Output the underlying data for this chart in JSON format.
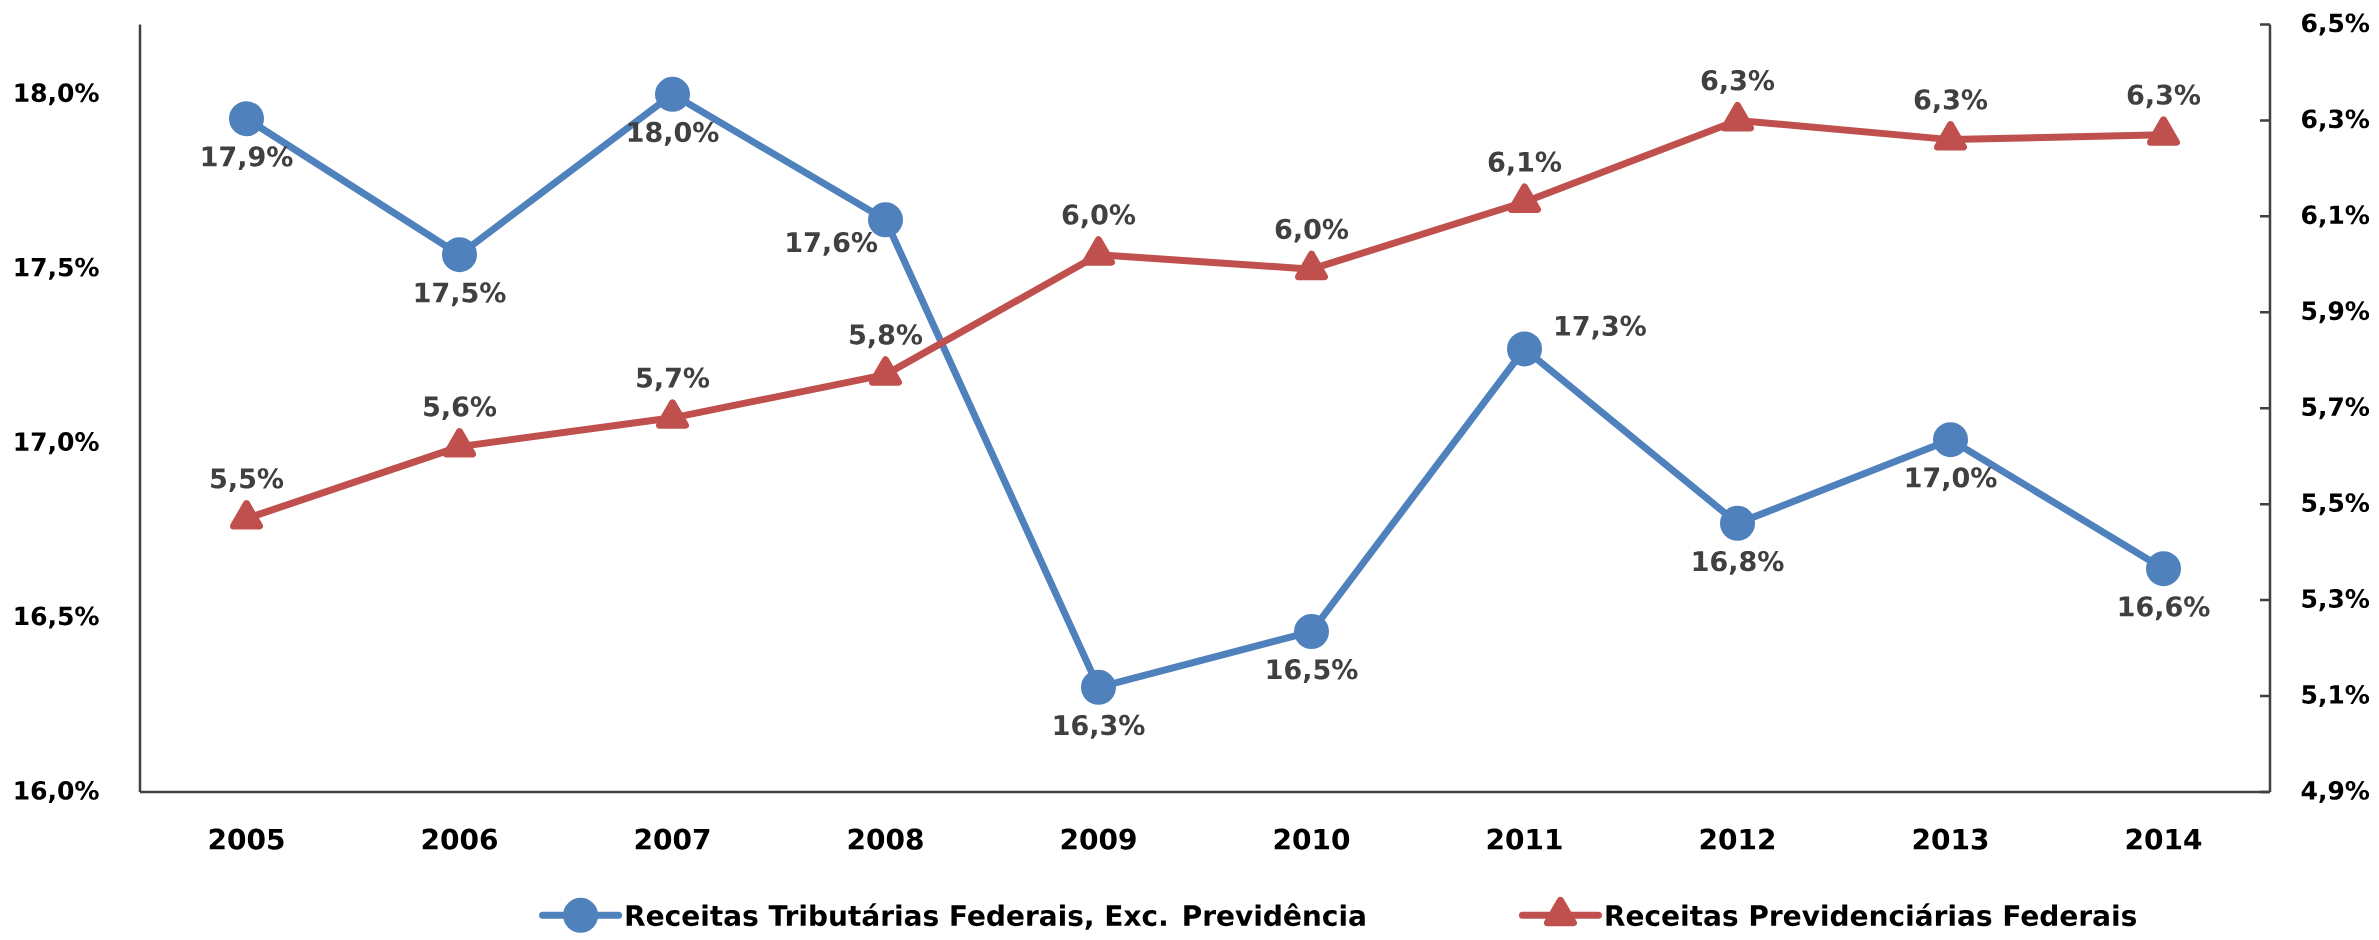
{
  "chart_data": {
    "type": "line",
    "categories": [
      "2005",
      "2006",
      "2007",
      "2008",
      "2009",
      "2010",
      "2011",
      "2012",
      "2013",
      "2014"
    ],
    "ylim": [
      16,
      18.2
    ],
    "yticks": [
      {
        "value": 16,
        "label": "16,0%"
      },
      {
        "value": 16.5,
        "label": "16,5%"
      },
      {
        "value": 17,
        "label": "17,0%"
      },
      {
        "value": 17.5,
        "label": "17,5%"
      },
      {
        "value": 18,
        "label": "18,0%"
      }
    ],
    "y2lim": [
      4.9,
      6.5
    ],
    "y2ticks": [
      {
        "value": 4.9,
        "label": "4,9%"
      },
      {
        "value": 5.1,
        "label": "5,1%"
      },
      {
        "value": 5.3,
        "label": "5,3%"
      },
      {
        "value": 5.5,
        "label": "5,5%"
      },
      {
        "value": 5.7,
        "label": "5,7%"
      },
      {
        "value": 5.9,
        "label": "5,9%"
      },
      {
        "value": 6.1,
        "label": "6,1%"
      },
      {
        "value": 6.3,
        "label": "6,3%"
      },
      {
        "value": 6.5,
        "label": "6,5%"
      }
    ],
    "series": [
      {
        "name": "Receitas Tributárias Federais, Exc. Previdência",
        "color": "#4f81bd",
        "marker": "circle",
        "values": [
          17.93,
          17.54,
          18.0,
          17.64,
          16.3,
          16.46,
          17.27,
          16.77,
          17.01,
          16.64
        ],
        "value_labels": [
          "17,9%",
          "17,5%",
          "18,0%",
          "17,6%",
          "16,3%",
          "16,5%",
          "17,3%",
          "16,8%",
          "17,0%",
          "16,6%"
        ]
      },
      {
        "name": "Receitas Previdenciárias Federais",
        "color": "#c0504d",
        "marker": "triangle",
        "axis": "y2",
        "values": [
          5.47,
          5.62,
          5.68,
          5.77,
          6.02,
          5.99,
          6.13,
          6.3,
          6.26,
          6.27
        ],
        "value_labels": [
          "5,5%",
          "5,6%",
          "5,7%",
          "5,8%",
          "6,0%",
          "6,0%",
          "6,1%",
          "6,3%",
          "6,3%",
          "6,3%"
        ]
      }
    ],
    "line_style": "solid",
    "legend": "bottom"
  }
}
